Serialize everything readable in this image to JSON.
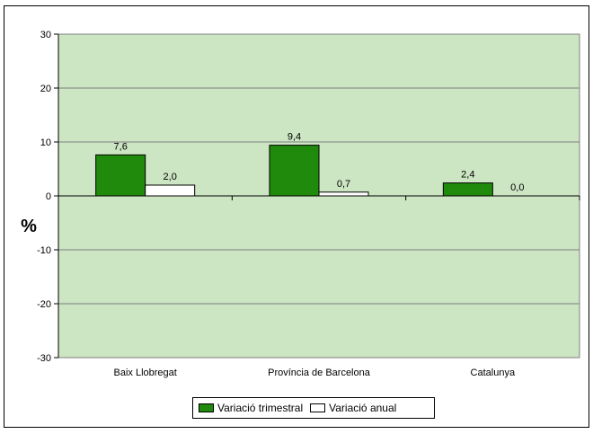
{
  "chart_data": {
    "type": "bar",
    "categories": [
      "Baix Llobregat",
      "Província de Barcelona",
      "Catalunya"
    ],
    "series": [
      {
        "name": "Variació trimestral",
        "values": [
          7.6,
          9.4,
          2.4
        ],
        "color": "#1f8a0c"
      },
      {
        "name": "Variació anual",
        "values": [
          2.0,
          0.7,
          0.0
        ],
        "color": "#ffffff"
      }
    ],
    "data_labels": [
      [
        "7,6",
        "9,4",
        "2,4"
      ],
      [
        "2,0",
        "0,7",
        "0,0"
      ]
    ],
    "ylabel": "%",
    "ylim": [
      -30,
      30
    ],
    "yticks": [
      30,
      20,
      10,
      0,
      -10,
      -20,
      -30
    ],
    "grid": true,
    "plot_background": "#cce5c2",
    "legend_position": "bottom-center"
  }
}
